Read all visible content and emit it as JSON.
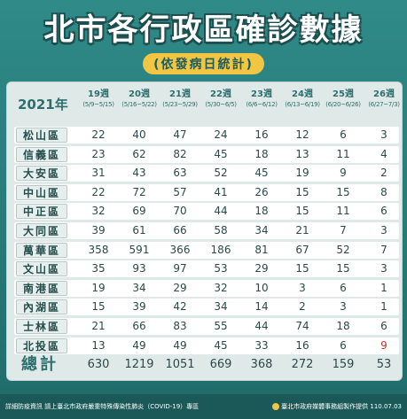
{
  "title": "北市各行政區確診數據",
  "subtitle": "(依發病日統計)",
  "year_label": "2021年",
  "weeks": [
    {
      "week": "19週",
      "range": "(5/9~5/15)"
    },
    {
      "week": "20週",
      "range": "(5/16~5/22)"
    },
    {
      "week": "21週",
      "range": "(5/23~5/29)"
    },
    {
      "week": "22週",
      "range": "(5/30~6/5)"
    },
    {
      "week": "23週",
      "range": "(6/6~6/12)"
    },
    {
      "week": "24週",
      "range": "(6/13~6/19)"
    },
    {
      "week": "25週",
      "range": "(6/20~6/26)"
    },
    {
      "week": "26週",
      "range": "(6/27~7/3)"
    }
  ],
  "rows": [
    {
      "district": "松山區",
      "values": [
        "22",
        "40",
        "47",
        "24",
        "16",
        "12",
        "6",
        "3"
      ]
    },
    {
      "district": "信義區",
      "values": [
        "23",
        "62",
        "82",
        "45",
        "18",
        "13",
        "11",
        "4"
      ]
    },
    {
      "district": "大安區",
      "values": [
        "31",
        "43",
        "63",
        "52",
        "45",
        "19",
        "9",
        "2"
      ]
    },
    {
      "district": "中山區",
      "values": [
        "22",
        "72",
        "57",
        "41",
        "26",
        "15",
        "15",
        "8"
      ]
    },
    {
      "district": "中正區",
      "values": [
        "32",
        "69",
        "70",
        "44",
        "18",
        "15",
        "11",
        "6"
      ]
    },
    {
      "district": "大同區",
      "values": [
        "39",
        "61",
        "66",
        "58",
        "34",
        "21",
        "7",
        "3"
      ]
    },
    {
      "district": "萬華區",
      "values": [
        "358",
        "591",
        "366",
        "186",
        "81",
        "67",
        "52",
        "7"
      ]
    },
    {
      "district": "文山區",
      "values": [
        "35",
        "93",
        "97",
        "53",
        "29",
        "15",
        "15",
        "3"
      ]
    },
    {
      "district": "南港區",
      "values": [
        "19",
        "34",
        "29",
        "32",
        "10",
        "3",
        "6",
        "1"
      ]
    },
    {
      "district": "內湖區",
      "values": [
        "15",
        "39",
        "42",
        "34",
        "14",
        "2",
        "3",
        "1"
      ]
    },
    {
      "district": "士林區",
      "values": [
        "21",
        "66",
        "83",
        "55",
        "44",
        "74",
        "18",
        "6"
      ]
    },
    {
      "district": "北投區",
      "values": [
        "13",
        "49",
        "49",
        "45",
        "33",
        "16",
        "6",
        "9"
      ]
    }
  ],
  "total_label": "總計",
  "totals": [
    "630",
    "1219",
    "1051",
    "669",
    "368",
    "272",
    "159",
    "53"
  ],
  "highlight_color": "#c9302c",
  "footer_left": "詳細防疫資訊 請上臺北市政府嚴重特殊傳染性肺炎（COVID-19）專區",
  "footer_right": "臺北市政府媒體事務組製作提供 110.07.03"
}
